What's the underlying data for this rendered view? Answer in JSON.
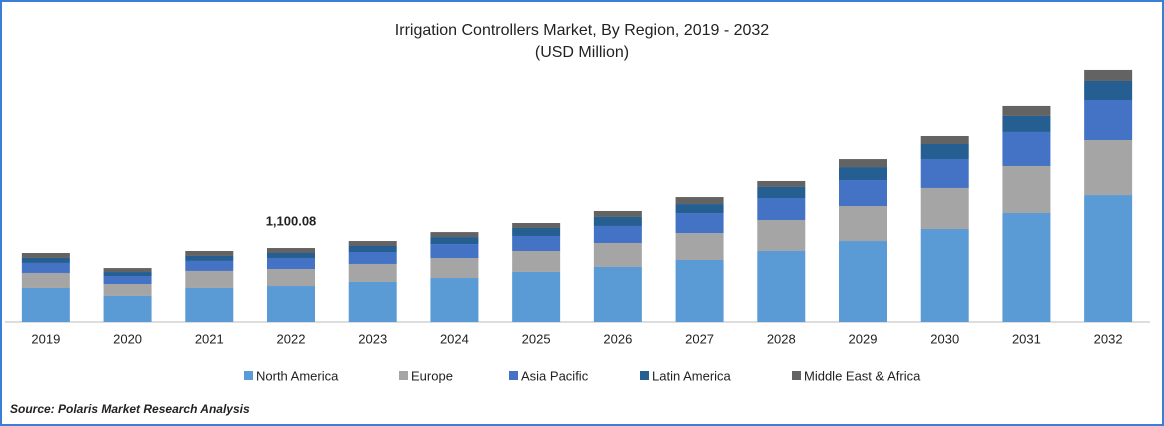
{
  "chart_data": {
    "type": "stacked-bar",
    "title": "Irrigation Controllers Market, By Region, 2019 - 2032",
    "subtitle": "(USD Million)",
    "source": "Source: Polaris  Market Research Analysis",
    "categories": [
      "2019",
      "2020",
      "2021",
      "2022",
      "2023",
      "2024",
      "2025",
      "2026",
      "2027",
      "2028",
      "2029",
      "2030",
      "2031",
      "2032"
    ],
    "series": [
      {
        "name": "North America",
        "color": "#5b9bd5",
        "values": [
          506,
          387,
          506,
          535,
          595,
          654,
          744,
          818,
          922,
          1056,
          1204,
          1383,
          1621,
          1888
        ]
      },
      {
        "name": "Europe",
        "color": "#a5a5a5",
        "values": [
          223,
          178,
          253,
          253,
          268,
          297,
          312,
          357,
          401,
          461,
          520,
          610,
          699,
          818
        ]
      },
      {
        "name": "Asia Pacific",
        "color": "#4472c4",
        "values": [
          149,
          119,
          149,
          164,
          178,
          208,
          223,
          253,
          297,
          327,
          387,
          431,
          506,
          595
        ]
      },
      {
        "name": "Latin America",
        "color": "#255e91",
        "values": [
          74,
          59,
          74,
          74,
          89,
          104,
          119,
          134,
          134,
          164,
          193,
          223,
          238,
          283
        ]
      },
      {
        "name": "Middle East & Africa",
        "color": "#636363",
        "values": [
          74,
          59,
          74,
          74.08,
          74,
          74,
          74,
          89,
          104,
          89,
          119,
          119,
          149,
          164
        ]
      }
    ],
    "annotations": [
      {
        "x": "2022",
        "value": 1100.08,
        "label": "1,100.08"
      }
    ],
    "ylim": [
      0,
      4000
    ],
    "legend": "bottom"
  }
}
